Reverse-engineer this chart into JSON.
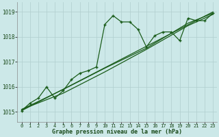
{
  "bg_color": "#cce8e8",
  "line_color": "#1a5c1a",
  "grid_color": "#b0cece",
  "xlabel": "Graphe pression niveau de la mer (hPa)",
  "ylim": [
    1014.6,
    1019.4
  ],
  "xlim": [
    -0.5,
    23.5
  ],
  "yticks": [
    1015,
    1016,
    1017,
    1018,
    1019
  ],
  "xticks": [
    0,
    1,
    2,
    3,
    4,
    5,
    6,
    7,
    8,
    9,
    10,
    11,
    12,
    13,
    14,
    15,
    16,
    17,
    18,
    19,
    20,
    21,
    22,
    23
  ],
  "series1_x": [
    0,
    1,
    2,
    3,
    4,
    5,
    6,
    7,
    8,
    9,
    10,
    11,
    12,
    13,
    14,
    15,
    16,
    17,
    18,
    19,
    20,
    21,
    22,
    23
  ],
  "series1_y": [
    1015.05,
    1015.35,
    1015.55,
    1016.0,
    1015.55,
    1015.85,
    1016.3,
    1016.55,
    1016.65,
    1016.8,
    1018.5,
    1018.85,
    1018.6,
    1018.6,
    1018.3,
    1017.6,
    1018.05,
    1018.2,
    1018.2,
    1017.85,
    1018.75,
    1018.65,
    1018.65,
    1018.95
  ],
  "series2_x": [
    0,
    23
  ],
  "series2_y": [
    1015.05,
    1019.0
  ],
  "series3_x": [
    0,
    5,
    10,
    15,
    20,
    23
  ],
  "series3_y": [
    1015.1,
    1015.9,
    1016.75,
    1017.55,
    1018.55,
    1018.95
  ],
  "series4_x": [
    0,
    5,
    10,
    15,
    20,
    23
  ],
  "series4_y": [
    1015.1,
    1015.75,
    1016.6,
    1017.5,
    1018.45,
    1018.9
  ]
}
